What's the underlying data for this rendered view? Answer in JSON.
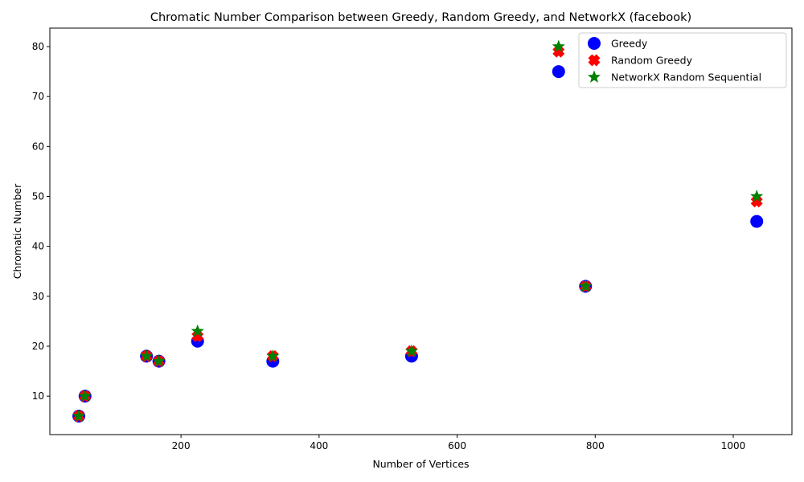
{
  "chart_data": {
    "type": "scatter",
    "title": "Chromatic Number Comparison between Greedy, Random Greedy, and NetworkX (facebook)",
    "xlabel": "Number of Vertices",
    "ylabel": "Chromatic Number",
    "xlim": [
      10,
      1085
    ],
    "ylim": [
      2.3,
      83.7
    ],
    "xticks": [
      200,
      400,
      600,
      800,
      1000
    ],
    "yticks": [
      10,
      20,
      30,
      40,
      50,
      60,
      70,
      80
    ],
    "grid": false,
    "legend_position": "top-right",
    "series": [
      {
        "name": "Greedy",
        "marker": "circle",
        "color": "#0000ff",
        "points": [
          [
            52,
            6
          ],
          [
            61,
            10
          ],
          [
            150,
            18
          ],
          [
            168,
            17
          ],
          [
            224,
            21
          ],
          [
            333,
            17
          ],
          [
            534,
            18
          ],
          [
            747,
            75
          ],
          [
            786,
            32
          ],
          [
            1034,
            45
          ]
        ]
      },
      {
        "name": "Random Greedy",
        "marker": "x",
        "color": "#ff0000",
        "points": [
          [
            52,
            6
          ],
          [
            61,
            10
          ],
          [
            150,
            18
          ],
          [
            168,
            17
          ],
          [
            224,
            22
          ],
          [
            333,
            18
          ],
          [
            534,
            19
          ],
          [
            747,
            79
          ],
          [
            786,
            32
          ],
          [
            1034,
            49
          ]
        ]
      },
      {
        "name": "NetworkX Random Sequential",
        "marker": "star",
        "color": "#008000",
        "points": [
          [
            52,
            6
          ],
          [
            61,
            10
          ],
          [
            150,
            18
          ],
          [
            168,
            17
          ],
          [
            224,
            23
          ],
          [
            333,
            18
          ],
          [
            534,
            19
          ],
          [
            747,
            80
          ],
          [
            786,
            32
          ],
          [
            1034,
            50
          ]
        ]
      }
    ]
  }
}
